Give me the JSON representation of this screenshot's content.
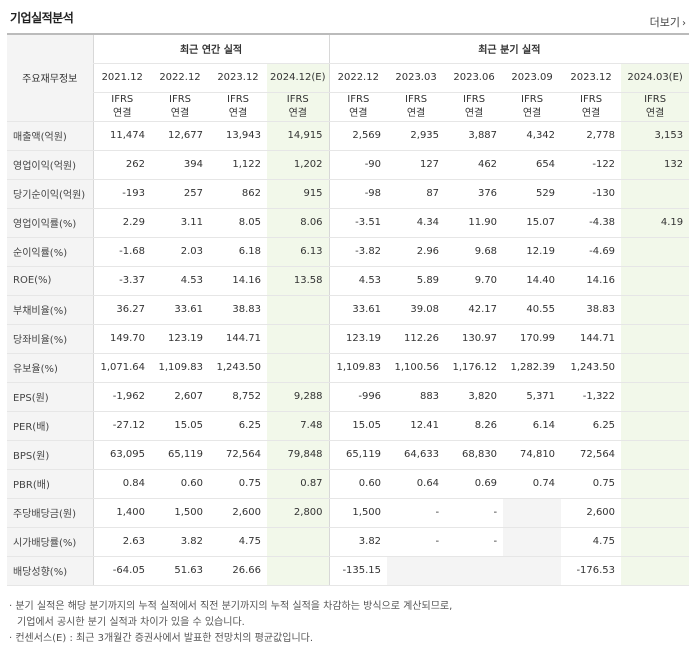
{
  "header": {
    "title": "기업실적분석",
    "more_label": "더보기",
    "more_icon": "chevron-right-icon"
  },
  "table": {
    "row_header_label": "주요재무정보",
    "annual_group": "최근 연간 실적",
    "quarter_group": "최근 분기 실적",
    "annual_dates": [
      "2021.12",
      "2022.12",
      "2023.12",
      "2024.12(E)"
    ],
    "quarter_dates": [
      "2022.12",
      "2023.03",
      "2023.06",
      "2023.09",
      "2023.12",
      "2024.03(E)"
    ],
    "ifrs_top": "IFRS",
    "ifrs_bottom": "연결",
    "rows": [
      {
        "label": "매출액(억원)",
        "values": [
          "11,474",
          "12,677",
          "13,943",
          "14,915",
          "2,569",
          "2,935",
          "3,887",
          "4,342",
          "2,778",
          "3,153"
        ]
      },
      {
        "label": "영업이익(억원)",
        "values": [
          "262",
          "394",
          "1,122",
          "1,202",
          "-90",
          "127",
          "462",
          "654",
          "-122",
          "132"
        ]
      },
      {
        "label": "당기순이익(억원)",
        "values": [
          "-193",
          "257",
          "862",
          "915",
          "-98",
          "87",
          "376",
          "529",
          "-130",
          ""
        ]
      },
      {
        "label": "영업이익률(%)",
        "values": [
          "2.29",
          "3.11",
          "8.05",
          "8.06",
          "-3.51",
          "4.34",
          "11.90",
          "15.07",
          "-4.38",
          "4.19"
        ]
      },
      {
        "label": "순이익률(%)",
        "values": [
          "-1.68",
          "2.03",
          "6.18",
          "6.13",
          "-3.82",
          "2.96",
          "9.68",
          "12.19",
          "-4.69",
          ""
        ]
      },
      {
        "label": "ROE(%)",
        "values": [
          "-3.37",
          "4.53",
          "14.16",
          "13.58",
          "4.53",
          "5.89",
          "9.70",
          "14.40",
          "14.16",
          ""
        ]
      },
      {
        "label": "부채비율(%)",
        "values": [
          "36.27",
          "33.61",
          "38.83",
          "",
          "33.61",
          "39.08",
          "42.17",
          "40.55",
          "38.83",
          ""
        ]
      },
      {
        "label": "당좌비율(%)",
        "values": [
          "149.70",
          "123.19",
          "144.71",
          "",
          "123.19",
          "112.26",
          "130.97",
          "170.99",
          "144.71",
          ""
        ]
      },
      {
        "label": "유보율(%)",
        "values": [
          "1,071.64",
          "1,109.83",
          "1,243.50",
          "",
          "1,109.83",
          "1,100.56",
          "1,176.12",
          "1,282.39",
          "1,243.50",
          ""
        ]
      },
      {
        "label": "EPS(원)",
        "values": [
          "-1,962",
          "2,607",
          "8,752",
          "9,288",
          "-996",
          "883",
          "3,820",
          "5,371",
          "-1,322",
          ""
        ]
      },
      {
        "label": "PER(배)",
        "values": [
          "-27.12",
          "15.05",
          "6.25",
          "7.48",
          "15.05",
          "12.41",
          "8.26",
          "6.14",
          "6.25",
          ""
        ]
      },
      {
        "label": "BPS(원)",
        "values": [
          "63,095",
          "65,119",
          "72,564",
          "79,848",
          "65,119",
          "64,633",
          "68,830",
          "74,810",
          "72,564",
          ""
        ]
      },
      {
        "label": "PBR(배)",
        "values": [
          "0.84",
          "0.60",
          "0.75",
          "0.87",
          "0.60",
          "0.64",
          "0.69",
          "0.74",
          "0.75",
          ""
        ]
      },
      {
        "label": "주당배당금(원)",
        "values": [
          "1,400",
          "1,500",
          "2,600",
          "2,800",
          "1,500",
          "-",
          "-",
          "",
          "2,600",
          ""
        ]
      },
      {
        "label": "시가배당률(%)",
        "values": [
          "2.63",
          "3.82",
          "4.75",
          "",
          "3.82",
          "-",
          "-",
          "",
          "4.75",
          ""
        ]
      },
      {
        "label": "배당성향(%)",
        "values": [
          "-64.05",
          "51.63",
          "26.66",
          "",
          "-135.15",
          "",
          "",
          "",
          "-176.53",
          ""
        ]
      }
    ]
  },
  "notes": [
    "· 분기 실적은 해당 분기까지의 누적 실적에서 직전 분기까지의 누적 실적을 차감하는 방식으로 계산되므로,",
    "  기업에서 공시한 분기 실적과 차이가 있을 수 있습니다.",
    "· 컨센서스(E) : 최근 3개월간 증권사에서 발표한 전망치의 평균값입니다."
  ],
  "colors": {
    "negative": "#e0183a",
    "ifrs": "#f28a20",
    "estimate_bg": "#f2f8ea",
    "label_bg": "#f4f4f4"
  }
}
